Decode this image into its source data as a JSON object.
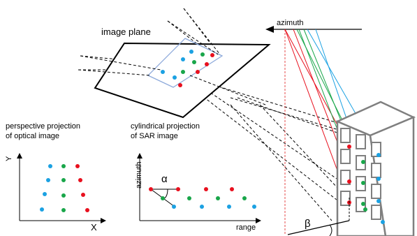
{
  "labels": {
    "image_plane": "image plane",
    "azimuth_top": "azimuth",
    "optical_title_line1": "perspective projection",
    "optical_title_line2": "of optical image",
    "sar_title_line1": "cylindrical projection",
    "sar_title_line2": "of SAR image",
    "optical_x_axis": "X",
    "optical_y_axis": "Y",
    "sar_x_axis": "range",
    "sar_y_axis": "azimuth",
    "alpha": "α",
    "beta": "β"
  },
  "colors": {
    "red": "#e8101e",
    "green": "#19a64a",
    "blue": "#1ba1e2",
    "dashed_red": "#e64a4a",
    "building_edge": "#7f7f7f",
    "window_edge": "#7f7f7f",
    "plane_inner": "#8eaadb",
    "ink": "#000000"
  }
}
